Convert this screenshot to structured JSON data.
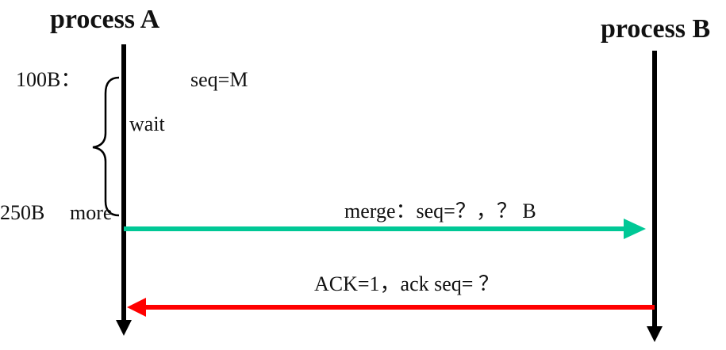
{
  "process_a": {
    "title": "process A"
  },
  "process_b": {
    "title": "process B"
  },
  "annotations": {
    "first_segment": "100B：",
    "first_seq": "seq=M",
    "wait": "wait",
    "second_segment": "250B",
    "more": "more"
  },
  "messages": {
    "merge": {
      "label": "merge：seq=？，？ B",
      "color": "#00c896",
      "direction": "A→B"
    },
    "ack": {
      "label": "ACK=1，ack seq= ？",
      "color": "#ff0000",
      "direction": "B→A"
    }
  },
  "colors": {
    "lifeline": "#000000"
  },
  "icons": {
    "wait_brace": "left-curly-brace"
  }
}
